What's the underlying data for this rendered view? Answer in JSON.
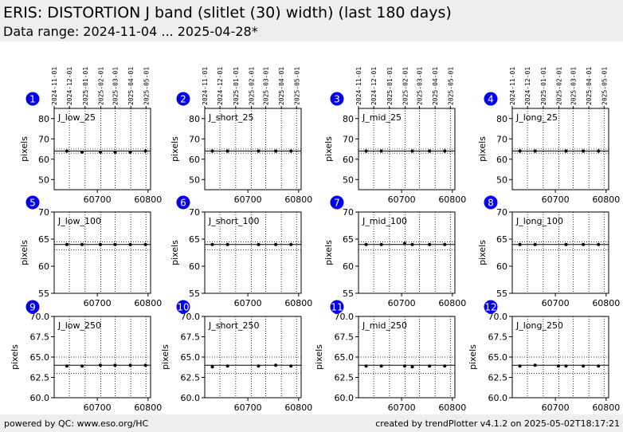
{
  "header": {
    "title": "ERIS: DISTORTION J band (slitlet (30) width) (last 180 days)",
    "subtitle": "Data range: 2024-11-04 ... 2025-04-28*"
  },
  "footer": {
    "left": "powered by QC: www.eso.org/HC",
    "right": "created by trendPlotter v4.1.2 on 2025-05-02T18:17:21"
  },
  "colors": {
    "badge": "#0000ee",
    "background_bar": "#eeeeee",
    "points": "#000000"
  },
  "chart_data": [
    {
      "type": "scatter",
      "panel": "1",
      "label": "J_low_25",
      "ylabel": "pixels",
      "x": [
        60640,
        60670,
        60706,
        60735,
        60765,
        60795
      ],
      "y": [
        64,
        63.5,
        63.5,
        63.5,
        63.5,
        64
      ],
      "ylim": [
        45,
        85
      ],
      "yticks": [
        "50",
        "60",
        "70",
        "80"
      ],
      "ref": 64,
      "band": [
        63,
        65
      ],
      "xlim": [
        60615,
        60805
      ],
      "xticks": [
        60700,
        60800
      ]
    },
    {
      "type": "scatter",
      "panel": "2",
      "label": "J_short_25",
      "ylabel": "pixels",
      "x": [
        60630,
        60660,
        60721,
        60755,
        60785
      ],
      "y": [
        64,
        64,
        64,
        64,
        64
      ],
      "ylim": [
        45,
        85
      ],
      "yticks": [
        "50",
        "60",
        "70",
        "80"
      ],
      "ref": 64,
      "band": [
        63,
        65
      ],
      "xlim": [
        60615,
        60805
      ],
      "xticks": [
        60700,
        60800
      ]
    },
    {
      "type": "scatter",
      "panel": "3",
      "label": "J_mid_25",
      "ylabel": "pixels",
      "x": [
        60630,
        60660,
        60721,
        60755,
        60785
      ],
      "y": [
        64,
        64,
        64,
        64,
        64
      ],
      "ylim": [
        45,
        85
      ],
      "yticks": [
        "50",
        "60",
        "70",
        "80"
      ],
      "ref": 64,
      "band": [
        63,
        65
      ],
      "xlim": [
        60615,
        60805
      ],
      "xticks": [
        60700,
        60800
      ]
    },
    {
      "type": "scatter",
      "panel": "4",
      "label": "J_long_25",
      "ylabel": "pixels",
      "x": [
        60630,
        60660,
        60721,
        60755,
        60785
      ],
      "y": [
        64,
        64,
        64,
        64,
        64
      ],
      "ylim": [
        45,
        85
      ],
      "yticks": [
        "50",
        "60",
        "70",
        "80"
      ],
      "ref": 64,
      "band": [
        63,
        65
      ],
      "xlim": [
        60615,
        60805
      ],
      "xticks": [
        60700,
        60800
      ]
    },
    {
      "type": "scatter",
      "panel": "5",
      "label": "J_low_100",
      "ylabel": "pixels",
      "x": [
        60640,
        60670,
        60706,
        60735,
        60765,
        60795
      ],
      "y": [
        64,
        64,
        64,
        64,
        64,
        64
      ],
      "ylim": [
        55,
        70
      ],
      "yticks": [
        "55",
        "60",
        "65",
        "70"
      ],
      "ref": 64,
      "band": [
        63,
        64.5
      ],
      "xlim": [
        60615,
        60805
      ],
      "xticks": [
        60700,
        60800
      ]
    },
    {
      "type": "scatter",
      "panel": "6",
      "label": "J_short_100",
      "ylabel": "pixels",
      "x": [
        60630,
        60660,
        60721,
        60755,
        60785
      ],
      "y": [
        64,
        64,
        64,
        64,
        64
      ],
      "ylim": [
        55,
        70
      ],
      "yticks": [
        "55",
        "60",
        "65",
        "70"
      ],
      "ref": 64,
      "band": [
        63,
        64.5
      ],
      "xlim": [
        60615,
        60805
      ],
      "xticks": [
        60700,
        60800
      ]
    },
    {
      "type": "scatter",
      "panel": "7",
      "label": "J_mid_100",
      "ylabel": "pixels",
      "x": [
        60630,
        60660,
        60706,
        60721,
        60755,
        60785
      ],
      "y": [
        64,
        64,
        64.2,
        64,
        64,
        64
      ],
      "ylim": [
        55,
        70
      ],
      "yticks": [
        "55",
        "60",
        "65",
        "70"
      ],
      "ref": 64,
      "band": [
        63,
        64.5
      ],
      "xlim": [
        60615,
        60805
      ],
      "xticks": [
        60700,
        60800
      ]
    },
    {
      "type": "scatter",
      "panel": "8",
      "label": "J_long_100",
      "ylabel": "pixels",
      "x": [
        60630,
        60660,
        60721,
        60755,
        60785
      ],
      "y": [
        64,
        64,
        64,
        64,
        64
      ],
      "ylim": [
        55,
        70
      ],
      "yticks": [
        "55",
        "60",
        "65",
        "70"
      ],
      "ref": 64,
      "band": [
        63,
        64.5
      ],
      "xlim": [
        60615,
        60805
      ],
      "xticks": [
        60700,
        60800
      ]
    },
    {
      "type": "scatter",
      "panel": "9",
      "label": "J_low_250",
      "ylabel": "pixels",
      "x": [
        60640,
        60670,
        60706,
        60735,
        60765,
        60795
      ],
      "y": [
        63.9,
        63.9,
        64,
        64,
        64,
        64
      ],
      "ylim": [
        60,
        70
      ],
      "yticks": [
        "60.0",
        "62.5",
        "65.0",
        "67.5",
        "70.0"
      ],
      "ref": 64,
      "band": [
        63,
        65
      ],
      "xlim": [
        60615,
        60805
      ],
      "xticks": [
        60700,
        60800
      ]
    },
    {
      "type": "scatter",
      "panel": "10",
      "label": "J_short_250",
      "ylabel": "pixels",
      "x": [
        60630,
        60660,
        60721,
        60755,
        60785
      ],
      "y": [
        63.8,
        63.9,
        63.9,
        64,
        63.9
      ],
      "ylim": [
        60,
        70
      ],
      "yticks": [
        "60.0",
        "62.5",
        "65.0",
        "67.5",
        "70.0"
      ],
      "ref": 64,
      "band": [
        63,
        65
      ],
      "xlim": [
        60615,
        60805
      ],
      "xticks": [
        60700,
        60800
      ]
    },
    {
      "type": "scatter",
      "panel": "11",
      "label": "J_mid_250",
      "ylabel": "pixels",
      "x": [
        60630,
        60660,
        60706,
        60721,
        60755,
        60785
      ],
      "y": [
        63.9,
        63.9,
        63.9,
        63.8,
        63.9,
        63.9
      ],
      "ylim": [
        60,
        70
      ],
      "yticks": [
        "60.0",
        "62.5",
        "65.0",
        "67.5",
        "70.0"
      ],
      "ref": 64,
      "band": [
        63,
        65
      ],
      "xlim": [
        60615,
        60805
      ],
      "xticks": [
        60700,
        60800
      ]
    },
    {
      "type": "scatter",
      "panel": "12",
      "label": "J_long_250",
      "ylabel": "pixels",
      "x": [
        60630,
        60660,
        60706,
        60721,
        60755,
        60785
      ],
      "y": [
        63.9,
        64,
        63.9,
        63.9,
        63.9,
        63.9
      ],
      "ylim": [
        60,
        70
      ],
      "yticks": [
        "60.0",
        "62.5",
        "65.0",
        "67.5",
        "70.0"
      ],
      "ref": 64,
      "band": [
        63,
        65
      ],
      "xlim": [
        60615,
        60805
      ],
      "xticks": [
        60700,
        60800
      ]
    }
  ],
  "date_ticks": [
    {
      "label": "2024-11-01",
      "x": 60615
    },
    {
      "label": "2024-12-01",
      "x": 60645
    },
    {
      "label": "2025-01-01",
      "x": 60676
    },
    {
      "label": "2025-02-01",
      "x": 60707
    },
    {
      "label": "2025-03-01",
      "x": 60735
    },
    {
      "label": "2025-04-01",
      "x": 60766
    },
    {
      "label": "2025-05-01",
      "x": 60796
    }
  ]
}
